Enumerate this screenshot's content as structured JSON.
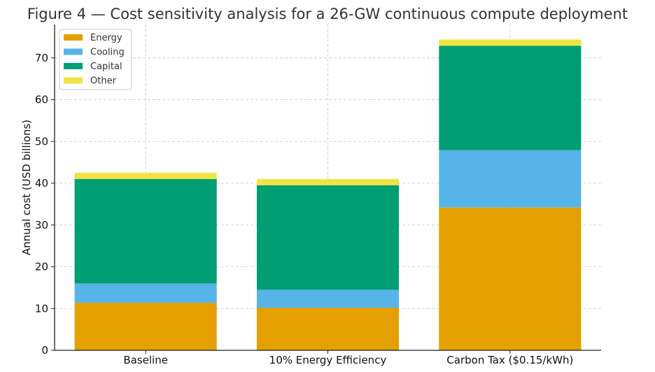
{
  "chart_data": {
    "type": "bar",
    "stacked": true,
    "title": "Figure 4 — Cost sensitivity analysis for a 26-GW continuous compute deployment",
    "xlabel": "",
    "ylabel": "Annual cost (USD billions)",
    "ylim": [
      0,
      78
    ],
    "yticks": [
      0,
      10,
      20,
      30,
      40,
      50,
      60,
      70
    ],
    "grid": true,
    "legend_position": "top-left",
    "categories": [
      "Baseline",
      "10% Energy Efficiency",
      "Carbon Tax ($0.15/kWh)"
    ],
    "series": [
      {
        "name": "Energy",
        "color": "#E49F00",
        "values": [
          11.4,
          10.2,
          34.2
        ]
      },
      {
        "name": "Cooling",
        "color": "#56B4E9",
        "values": [
          4.6,
          4.3,
          13.7
        ]
      },
      {
        "name": "Capital",
        "color": "#009E73",
        "values": [
          25.0,
          25.0,
          25.0
        ]
      },
      {
        "name": "Other",
        "color": "#F0E442",
        "values": [
          1.5,
          1.5,
          1.5
        ]
      }
    ]
  }
}
